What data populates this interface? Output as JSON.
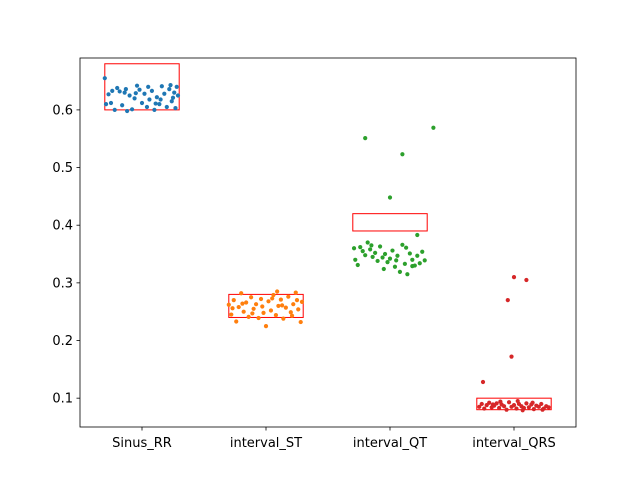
{
  "chart_data": {
    "type": "scatter",
    "title": "",
    "xlabel": "",
    "ylabel": "",
    "categories": [
      "Sinus_RR",
      "interval_ST",
      "interval_QT",
      "interval_QRS"
    ],
    "ylim": [
      0.05,
      0.69
    ],
    "yticks": [
      0.1,
      0.2,
      0.3,
      0.4,
      0.5,
      0.6
    ],
    "ytick_labels": [
      "0.1",
      "0.2",
      "0.3",
      "0.4",
      "0.5",
      "0.6"
    ],
    "grid": false,
    "colors": {
      "Sinus_RR": "#1f77b4",
      "interval_ST": "#ff7f0e",
      "interval_QT": "#2ca02c",
      "interval_QRS": "#d62728",
      "range_box": "#ff0000",
      "axes": "#000000"
    },
    "reference_ranges": [
      {
        "category": "Sinus_RR",
        "low": 0.6,
        "high": 0.68
      },
      {
        "category": "interval_ST",
        "low": 0.24,
        "high": 0.28
      },
      {
        "category": "interval_QT",
        "low": 0.39,
        "high": 0.42
      },
      {
        "category": "interval_QRS",
        "low": 0.08,
        "high": 0.1
      }
    ],
    "series": [
      {
        "category": "Sinus_RR",
        "points": [
          [
            -0.3,
            0.655
          ],
          [
            -0.27,
            0.627
          ],
          [
            -0.25,
            0.612
          ],
          [
            -0.22,
            0.6
          ],
          [
            -0.2,
            0.638
          ],
          [
            -0.18,
            0.632
          ],
          [
            -0.16,
            0.608
          ],
          [
            -0.14,
            0.63
          ],
          [
            -0.12,
            0.598
          ],
          [
            -0.1,
            0.625
          ],
          [
            -0.08,
            0.601
          ],
          [
            -0.06,
            0.62
          ],
          [
            -0.04,
            0.642
          ],
          [
            -0.02,
            0.635
          ],
          [
            0.0,
            0.612
          ],
          [
            0.02,
            0.628
          ],
          [
            0.04,
            0.605
          ],
          [
            0.06,
            0.618
          ],
          [
            0.08,
            0.633
          ],
          [
            0.1,
            0.6
          ],
          [
            0.12,
            0.622
          ],
          [
            0.14,
            0.61
          ],
          [
            0.16,
            0.641
          ],
          [
            0.18,
            0.628
          ],
          [
            0.2,
            0.605
          ],
          [
            0.22,
            0.636
          ],
          [
            0.24,
            0.615
          ],
          [
            0.26,
            0.63
          ],
          [
            0.27,
            0.603
          ],
          [
            0.28,
            0.64
          ],
          [
            0.29,
            0.625
          ],
          [
            -0.29,
            0.61
          ],
          [
            -0.13,
            0.636
          ],
          [
            0.05,
            0.64
          ],
          [
            0.15,
            0.618
          ],
          [
            0.23,
            0.643
          ],
          [
            0.25,
            0.621
          ],
          [
            -0.24,
            0.633
          ],
          [
            0.11,
            0.611
          ],
          [
            -0.05,
            0.629
          ]
        ]
      },
      {
        "category": "interval_ST",
        "points": [
          [
            -0.3,
            0.262
          ],
          [
            -0.28,
            0.245
          ],
          [
            -0.26,
            0.27
          ],
          [
            -0.24,
            0.233
          ],
          [
            -0.22,
            0.258
          ],
          [
            -0.2,
            0.282
          ],
          [
            -0.18,
            0.25
          ],
          [
            -0.16,
            0.266
          ],
          [
            -0.14,
            0.241
          ],
          [
            -0.12,
            0.275
          ],
          [
            -0.1,
            0.255
          ],
          [
            -0.08,
            0.263
          ],
          [
            -0.06,
            0.239
          ],
          [
            -0.04,
            0.272
          ],
          [
            -0.02,
            0.248
          ],
          [
            0.0,
            0.225
          ],
          [
            0.02,
            0.268
          ],
          [
            0.04,
            0.252
          ],
          [
            0.06,
            0.279
          ],
          [
            0.08,
            0.244
          ],
          [
            0.1,
            0.26
          ],
          [
            0.12,
            0.271
          ],
          [
            0.14,
            0.238
          ],
          [
            0.16,
            0.257
          ],
          [
            0.18,
            0.276
          ],
          [
            0.2,
            0.249
          ],
          [
            0.22,
            0.263
          ],
          [
            0.24,
            0.283
          ],
          [
            0.26,
            0.254
          ],
          [
            0.28,
            0.232
          ],
          [
            0.29,
            0.267
          ],
          [
            -0.27,
            0.256
          ],
          [
            -0.11,
            0.247
          ],
          [
            0.05,
            0.273
          ],
          [
            0.13,
            0.261
          ],
          [
            0.21,
            0.243
          ],
          [
            0.25,
            0.27
          ],
          [
            -0.19,
            0.264
          ],
          [
            0.09,
            0.285
          ],
          [
            -0.03,
            0.259
          ]
        ]
      },
      {
        "category": "interval_QT",
        "points": [
          [
            -0.2,
            0.551
          ],
          [
            0.1,
            0.523
          ],
          [
            0.35,
            0.569
          ],
          [
            0.0,
            0.448
          ],
          [
            0.22,
            0.383
          ],
          [
            -0.28,
            0.34
          ],
          [
            -0.26,
            0.331
          ],
          [
            -0.24,
            0.362
          ],
          [
            -0.22,
            0.355
          ],
          [
            -0.2,
            0.348
          ],
          [
            -0.18,
            0.37
          ],
          [
            -0.16,
            0.358
          ],
          [
            -0.14,
            0.345
          ],
          [
            -0.12,
            0.352
          ],
          [
            -0.1,
            0.338
          ],
          [
            -0.08,
            0.363
          ],
          [
            -0.06,
            0.344
          ],
          [
            -0.04,
            0.35
          ],
          [
            -0.02,
            0.336
          ],
          [
            0.0,
            0.342
          ],
          [
            0.02,
            0.356
          ],
          [
            0.04,
            0.328
          ],
          [
            0.06,
            0.347
          ],
          [
            0.08,
            0.319
          ],
          [
            0.1,
            0.366
          ],
          [
            0.12,
            0.333
          ],
          [
            0.14,
            0.315
          ],
          [
            0.16,
            0.351
          ],
          [
            0.18,
            0.34
          ],
          [
            0.2,
            0.33
          ],
          [
            0.22,
            0.347
          ],
          [
            0.24,
            0.334
          ],
          [
            0.26,
            0.354
          ],
          [
            0.28,
            0.339
          ],
          [
            -0.29,
            0.36
          ],
          [
            -0.15,
            0.365
          ],
          [
            0.05,
            0.339
          ],
          [
            0.13,
            0.361
          ],
          [
            -0.05,
            0.324
          ],
          [
            0.18,
            0.329
          ]
        ]
      },
      {
        "category": "interval_QRS",
        "points": [
          [
            -0.25,
            0.128
          ],
          [
            -0.05,
            0.27
          ],
          [
            0.0,
            0.31
          ],
          [
            0.1,
            0.305
          ],
          [
            -0.02,
            0.172
          ],
          [
            -0.28,
            0.085
          ],
          [
            -0.26,
            0.09
          ],
          [
            -0.24,
            0.082
          ],
          [
            -0.22,
            0.088
          ],
          [
            -0.2,
            0.092
          ],
          [
            -0.18,
            0.084
          ],
          [
            -0.16,
            0.087
          ],
          [
            -0.14,
            0.091
          ],
          [
            -0.12,
            0.083
          ],
          [
            -0.1,
            0.089
          ],
          [
            -0.08,
            0.086
          ],
          [
            -0.06,
            0.08
          ],
          [
            -0.04,
            0.093
          ],
          [
            -0.02,
            0.085
          ],
          [
            0.0,
            0.088
          ],
          [
            0.02,
            0.082
          ],
          [
            0.04,
            0.09
          ],
          [
            0.06,
            0.086
          ],
          [
            0.08,
            0.083
          ],
          [
            0.1,
            0.091
          ],
          [
            0.12,
            0.084
          ],
          [
            0.14,
            0.089
          ],
          [
            0.16,
            0.081
          ],
          [
            0.18,
            0.087
          ],
          [
            0.2,
            0.085
          ],
          [
            0.22,
            0.09
          ],
          [
            0.24,
            0.082
          ],
          [
            0.26,
            0.086
          ],
          [
            0.28,
            0.084
          ],
          [
            -0.11,
            0.094
          ],
          [
            0.07,
            0.079
          ],
          [
            0.15,
            0.092
          ],
          [
            0.23,
            0.08
          ],
          [
            -0.17,
            0.089
          ],
          [
            0.03,
            0.095
          ]
        ]
      }
    ]
  }
}
